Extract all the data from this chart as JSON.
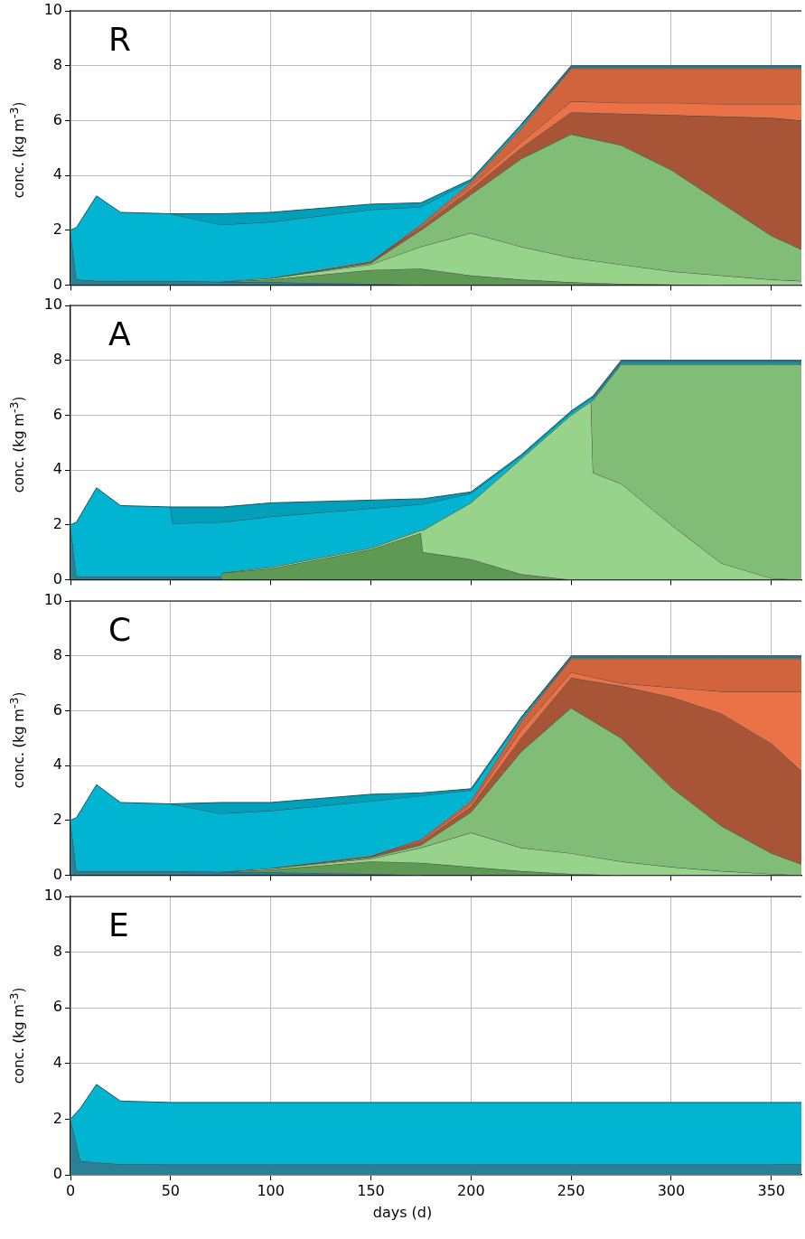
{
  "chart_data": [
    {
      "type": "area",
      "title": "R",
      "ylabel": "conc. (kg m$^{-3}$)",
      "stacked": true,
      "grid": true,
      "tick_labels": "y",
      "xlim": [
        0,
        365
      ],
      "ylim": [
        0,
        10
      ],
      "xticks": [
        0,
        50,
        100,
        150,
        200,
        250,
        300,
        350
      ],
      "yticks": [
        0,
        2,
        4,
        6,
        8,
        10
      ],
      "x": [
        0,
        3,
        13,
        25,
        50,
        75,
        100,
        150,
        175,
        200,
        225,
        250,
        275,
        300,
        325,
        350,
        365
      ],
      "series": [
        {
          "color": "#2a8094",
          "values": [
            2,
            0.2,
            0.15,
            0.15,
            0.15,
            0.12,
            0.1,
            0.05,
            0,
            null,
            null,
            null,
            null,
            null,
            null,
            null,
            null
          ]
        },
        {
          "color": "#5f9a55",
          "values": [
            null,
            null,
            null,
            null,
            null,
            0,
            0.1,
            0.5,
            0.6,
            0.35,
            0.2,
            0.1,
            0.05,
            0.02,
            0,
            null,
            null
          ]
        },
        {
          "color": "#98d38c",
          "values": [
            null,
            null,
            null,
            null,
            null,
            0,
            0.05,
            0.2,
            0.8,
            1.55,
            1.2,
            0.9,
            0.7,
            0.48,
            0.35,
            0.2,
            0.15
          ]
        },
        {
          "color": "#82bd77",
          "values": [
            null,
            null,
            null,
            null,
            null,
            null,
            0,
            0.05,
            0.6,
            1.4,
            3.2,
            4.5,
            4.35,
            3.7,
            2.65,
            1.6,
            1.15
          ]
        },
        {
          "color": "#a85537",
          "values": [
            null,
            null,
            null,
            null,
            null,
            null,
            0,
            0.05,
            0.1,
            0.2,
            0.4,
            0.8,
            1.15,
            2.0,
            3.15,
            4.3,
            4.7
          ]
        },
        {
          "color": "#ea7246",
          "values": [
            null,
            null,
            null,
            null,
            null,
            null,
            null,
            0,
            0.05,
            0.1,
            0.2,
            0.4,
            0.4,
            0.45,
            0.45,
            0.5,
            0.6
          ]
        },
        {
          "color": "#d1643c",
          "values": [
            null,
            null,
            null,
            null,
            null,
            null,
            null,
            0,
            0.05,
            0.15,
            0.5,
            1.2,
            1.25,
            1.25,
            1.3,
            1.3,
            1.3
          ]
        },
        {
          "color": "#00b4d2",
          "values": [
            0,
            1.9,
            3.1,
            2.5,
            2.45,
            2.08,
            2.05,
            1.9,
            0.65,
            0.05,
            0.1,
            0,
            null,
            null,
            null,
            null,
            null
          ]
        },
        {
          "color": "#009fba",
          "values": [
            null,
            null,
            null,
            null,
            0,
            0.4,
            0.35,
            0.2,
            0.15,
            0.05,
            0.05,
            0.05,
            0.05,
            0.05,
            0.05,
            0.05,
            0.05
          ]
        },
        {
          "color": "#2a8094",
          "values": [
            null,
            null,
            null,
            null,
            null,
            null,
            null,
            null,
            null,
            null,
            0,
            0.05,
            0.05,
            0.05,
            0.05,
            0.05,
            0.05
          ]
        }
      ]
    },
    {
      "type": "area",
      "title": "A",
      "ylabel": "conc. (kg m$^{-3}$)",
      "stacked": true,
      "grid": true,
      "tick_labels": "y",
      "xlim": [
        0,
        365
      ],
      "ylim": [
        0,
        10
      ],
      "xticks": [
        0,
        50,
        100,
        150,
        200,
        250,
        300,
        350
      ],
      "yticks": [
        0,
        2,
        4,
        6,
        8,
        10
      ],
      "x": [
        0,
        3,
        13,
        25,
        50,
        51,
        75,
        76,
        100,
        150,
        175,
        176,
        200,
        225,
        250,
        260,
        261,
        275,
        300,
        325,
        350,
        365
      ],
      "series": [
        {
          "color": "#2a8094",
          "values": [
            2,
            0.1,
            0.1,
            0.1,
            0.1,
            0.1,
            0.1,
            0,
            null,
            null,
            null,
            null,
            null,
            null,
            null,
            null,
            null,
            null,
            null,
            null,
            null,
            null
          ]
        },
        {
          "color": "#5f9a55",
          "values": [
            null,
            null,
            null,
            null,
            null,
            null,
            0,
            0.25,
            0.4,
            1.1,
            1.7,
            1.0,
            0.75,
            0.2,
            0,
            null,
            null,
            null,
            null,
            null,
            null,
            null
          ]
        },
        {
          "color": "#98d38c",
          "values": [
            null,
            null,
            null,
            null,
            null,
            null,
            null,
            0,
            0.05,
            0.05,
            0.1,
            0.8,
            2.05,
            4.2,
            6.0,
            6.5,
            3.9,
            3.5,
            2.0,
            0.6,
            0.05,
            0
          ]
        },
        {
          "color": "#82bd77",
          "values": [
            null,
            null,
            null,
            null,
            null,
            null,
            null,
            null,
            null,
            null,
            null,
            null,
            null,
            null,
            null,
            0,
            2.65,
            4.35,
            5.85,
            7.25,
            7.8,
            7.85
          ]
        },
        {
          "color": "#00b4d2",
          "values": [
            0,
            2.0,
            3.25,
            2.6,
            2.55,
            1.95,
            2.0,
            1.85,
            1.85,
            1.45,
            0.95,
            0.95,
            0.35,
            0.1,
            0.1,
            0.1,
            0.05,
            0.05,
            0.05,
            0.05,
            0.05,
            0.05
          ]
        },
        {
          "color": "#009fba",
          "values": [
            null,
            null,
            null,
            null,
            0,
            0.6,
            0.55,
            0.55,
            0.5,
            0.3,
            0.2,
            0.2,
            0.05,
            0.05,
            0.05,
            0.05,
            0.05,
            0.05,
            0.05,
            0.05,
            0.05,
            0.05
          ]
        },
        {
          "color": "#2a8094",
          "values": [
            null,
            null,
            null,
            null,
            null,
            null,
            null,
            null,
            null,
            null,
            null,
            null,
            null,
            null,
            null,
            0,
            0.05,
            0.05,
            0.05,
            0.05,
            0.05,
            0.05
          ]
        }
      ]
    },
    {
      "type": "area",
      "title": "C",
      "ylabel": "conc. (kg m$^{-3}$)",
      "stacked": true,
      "grid": true,
      "tick_labels": "y",
      "xlim": [
        0,
        365
      ],
      "ylim": [
        0,
        10
      ],
      "xticks": [
        0,
        50,
        100,
        150,
        200,
        250,
        300,
        350
      ],
      "yticks": [
        0,
        2,
        4,
        6,
        8,
        10
      ],
      "x": [
        0,
        3,
        13,
        25,
        50,
        75,
        100,
        150,
        175,
        200,
        225,
        250,
        275,
        300,
        325,
        350,
        365
      ],
      "series": [
        {
          "color": "#2a8094",
          "values": [
            2,
            0.15,
            0.15,
            0.15,
            0.15,
            0.12,
            0.1,
            0.05,
            0,
            null,
            null,
            null,
            null,
            null,
            null,
            null,
            null
          ]
        },
        {
          "color": "#5f9a55",
          "values": [
            null,
            null,
            null,
            null,
            null,
            0,
            0.1,
            0.45,
            0.45,
            0.3,
            0.15,
            0.05,
            0,
            null,
            null,
            null,
            null
          ]
        },
        {
          "color": "#98d38c",
          "values": [
            null,
            null,
            null,
            null,
            null,
            0,
            0.05,
            0.1,
            0.55,
            1.25,
            0.85,
            0.75,
            0.5,
            0.3,
            0.15,
            0.05,
            0
          ]
        },
        {
          "color": "#82bd77",
          "values": [
            null,
            null,
            null,
            null,
            null,
            null,
            0,
            0.05,
            0.1,
            0.75,
            3.5,
            5.3,
            4.5,
            2.9,
            1.65,
            0.75,
            0.4
          ]
        },
        {
          "color": "#a85537",
          "values": [
            null,
            null,
            null,
            null,
            null,
            null,
            0,
            0.05,
            0.1,
            0.2,
            0.5,
            1.1,
            1.9,
            3.3,
            4.1,
            4.0,
            3.4
          ]
        },
        {
          "color": "#ea7246",
          "values": [
            null,
            null,
            null,
            null,
            null,
            null,
            null,
            0,
            0.05,
            0.1,
            0.3,
            0.2,
            0.1,
            0.35,
            0.8,
            1.9,
            2.9
          ]
        },
        {
          "color": "#d1643c",
          "values": [
            null,
            null,
            null,
            null,
            null,
            null,
            null,
            0,
            0.05,
            0.1,
            0.3,
            0.5,
            0.9,
            1.05,
            1.2,
            1.2,
            1.2
          ]
        },
        {
          "color": "#00b4d2",
          "values": [
            0,
            1.95,
            3.15,
            2.5,
            2.45,
            2.13,
            2.1,
            2.0,
            1.6,
            0.4,
            0.1,
            0,
            null,
            null,
            null,
            null,
            null
          ]
        },
        {
          "color": "#009fba",
          "values": [
            null,
            null,
            null,
            null,
            0,
            0.4,
            0.3,
            0.25,
            0.1,
            0.05,
            0.05,
            0.05,
            0.05,
            0.05,
            0.05,
            0.05,
            0.05
          ]
        },
        {
          "color": "#2a8094",
          "values": [
            null,
            null,
            null,
            null,
            null,
            null,
            null,
            null,
            null,
            null,
            0,
            0.05,
            0.05,
            0.05,
            0.05,
            0.05,
            0.05
          ]
        }
      ]
    },
    {
      "type": "area",
      "title": "E",
      "xlabel": "days (d)",
      "ylabel": "conc. (kg m$^{-3}$)",
      "stacked": true,
      "grid": true,
      "xlim": [
        0,
        365
      ],
      "ylim": [
        0,
        10
      ],
      "xticks": [
        0,
        50,
        100,
        150,
        200,
        250,
        300,
        350
      ],
      "yticks": [
        0,
        2,
        4,
        6,
        8,
        10
      ],
      "x": [
        0,
        5,
        13,
        25,
        50,
        100,
        150,
        200,
        250,
        300,
        350,
        365
      ],
      "series": [
        {
          "color": "#2a8094",
          "values": [
            2,
            0.5,
            0.45,
            0.38,
            0.37,
            0.37,
            0.37,
            0.37,
            0.37,
            0.37,
            0.37,
            0.38
          ]
        },
        {
          "color": "#00b4d2",
          "values": [
            0,
            1.9,
            2.8,
            2.27,
            2.23,
            2.23,
            2.23,
            2.23,
            2.23,
            2.23,
            2.23,
            2.22
          ]
        }
      ]
    }
  ]
}
